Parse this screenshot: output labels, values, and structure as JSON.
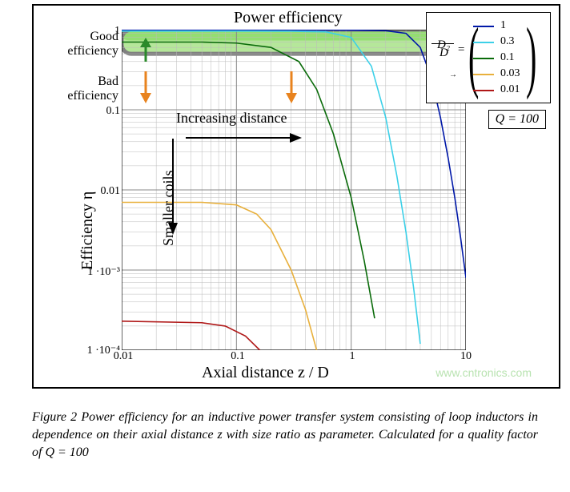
{
  "chart": {
    "type": "line",
    "title": "Power efficiency",
    "xlabel": "Axial distance z / D",
    "ylabel": "Efficiency η",
    "good_label_l1": "Good",
    "good_label_l2": "efficiency",
    "bad_label_l1": "Bad",
    "bad_label_l2": "efficiency",
    "increasing_label": "Increasing distance",
    "smaller_label": "Smaller coils",
    "background_color": "#ffffff",
    "grid_color_major": "#888888",
    "grid_color_minor": "#bbbbbb",
    "good_band_fill": "#b5e79a",
    "good_band_fill_inner": "#7ed957",
    "good_band_stroke": "#808080",
    "good_band_stroke_w": 5,
    "good_band_ymin": 0.5,
    "good_band_ymax": 1.0,
    "xscale": "log",
    "yscale": "log",
    "xlim": [
      0.01,
      10
    ],
    "ylim": [
      0.0001,
      1
    ],
    "xticks": [
      0.01,
      0.1,
      1,
      10
    ],
    "xtick_labels": [
      "0.01",
      "0.1",
      "1",
      "10"
    ],
    "yticks": [
      1,
      0.1,
      0.01,
      0.001,
      0.0001
    ],
    "ytick_labels": [
      "1",
      "0.1",
      "0.01",
      "1 ·10⁻³",
      "1 ·10⁻⁴"
    ],
    "axis_fontsize": 14,
    "label_fontsize": 20,
    "title_fontsize": 20,
    "line_width": 1.6,
    "arrow_color": "#e8831e",
    "up_arrow_color": "#2a8a2a",
    "black_arrow_color": "#000000",
    "series": [
      {
        "ratio": "1",
        "color": "#0018a8",
        "points": [
          [
            0.01,
            0.99
          ],
          [
            0.1,
            0.99
          ],
          [
            0.5,
            0.99
          ],
          [
            1,
            0.985
          ],
          [
            2,
            0.97
          ],
          [
            3,
            0.9
          ],
          [
            4,
            0.6
          ],
          [
            5,
            0.25
          ],
          [
            6,
            0.08
          ],
          [
            7,
            0.025
          ],
          [
            8,
            0.008
          ],
          [
            9,
            0.0025
          ],
          [
            10,
            0.0008
          ]
        ]
      },
      {
        "ratio": "0.3",
        "color": "#3cd0e8",
        "points": [
          [
            0.01,
            0.96
          ],
          [
            0.1,
            0.96
          ],
          [
            0.3,
            0.955
          ],
          [
            0.6,
            0.94
          ],
          [
            1,
            0.8
          ],
          [
            1.5,
            0.35
          ],
          [
            2,
            0.08
          ],
          [
            2.5,
            0.015
          ],
          [
            3,
            0.003
          ],
          [
            3.5,
            0.0006
          ],
          [
            4,
            0.00012
          ]
        ]
      },
      {
        "ratio": "0.1",
        "color": "#0a6b0a",
        "points": [
          [
            0.01,
            0.7
          ],
          [
            0.05,
            0.7
          ],
          [
            0.1,
            0.68
          ],
          [
            0.2,
            0.6
          ],
          [
            0.35,
            0.4
          ],
          [
            0.5,
            0.18
          ],
          [
            0.7,
            0.05
          ],
          [
            1,
            0.008
          ],
          [
            1.3,
            0.0013
          ],
          [
            1.6,
            0.00025
          ]
        ]
      },
      {
        "ratio": "0.03",
        "color": "#e8b03c",
        "points": [
          [
            0.01,
            0.007
          ],
          [
            0.05,
            0.007
          ],
          [
            0.1,
            0.0065
          ],
          [
            0.15,
            0.005
          ],
          [
            0.2,
            0.0032
          ],
          [
            0.3,
            0.001
          ],
          [
            0.4,
            0.00032
          ],
          [
            0.5,
            0.0001
          ]
        ]
      },
      {
        "ratio": "0.01",
        "color": "#b01818",
        "points": [
          [
            0.01,
            0.00023
          ],
          [
            0.05,
            0.00022
          ],
          [
            0.08,
            0.0002
          ],
          [
            0.12,
            0.00015
          ],
          [
            0.16,
            0.0001
          ]
        ]
      }
    ],
    "legend": {
      "ratio_overline": "→",
      "ratio_top": "D₂",
      "ratio_bot": "D",
      "equals": "="
    },
    "q_box": "Q = 100",
    "watermark": "www.cntronics.com",
    "caption": "Figure 2 Power efficiency for an inductive power transfer system consisting of loop inductors in dependence on their axial distance z with size ratio as parameter. Calculated for a quality factor of Q = 100"
  }
}
